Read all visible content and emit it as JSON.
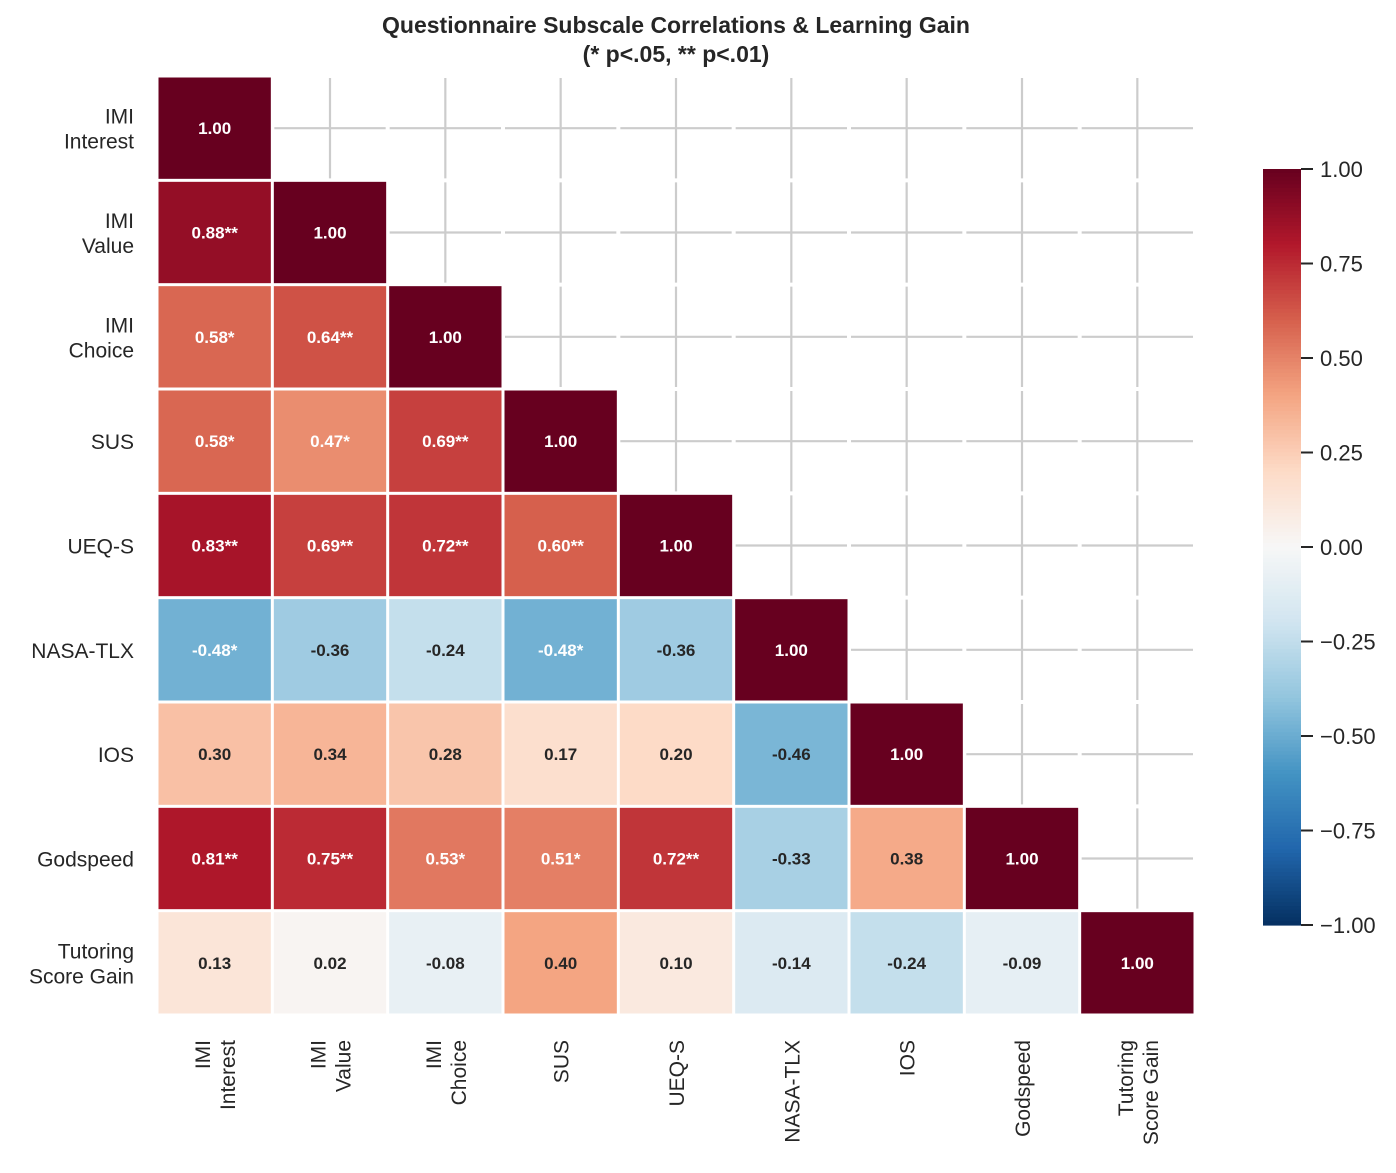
{
  "chart_data": {
    "type": "heatmap",
    "title": "Questionnaire Subscale Correlations & Learning Gain",
    "subtitle": "(* p<.05, ** p<.01)",
    "row_labels": [
      [
        "IMI",
        "Interest"
      ],
      [
        "IMI",
        "Value"
      ],
      [
        "IMI",
        "Choice"
      ],
      [
        "SUS"
      ],
      [
        "UEQ-S"
      ],
      [
        "NASA-TLX"
      ],
      [
        "IOS"
      ],
      [
        "Godspeed"
      ],
      [
        "Tutoring",
        "Score Gain"
      ]
    ],
    "col_labels": [
      [
        "IMI",
        "Interest"
      ],
      [
        "IMI",
        "Value"
      ],
      [
        "IMI",
        "Choice"
      ],
      [
        "SUS"
      ],
      [
        "UEQ-S"
      ],
      [
        "NASA-TLX"
      ],
      [
        "IOS"
      ],
      [
        "Godspeed"
      ],
      [
        "Tutoring",
        "Score Gain"
      ]
    ],
    "mask": "upper-triangle",
    "values": [
      [
        1.0
      ],
      [
        0.88,
        1.0
      ],
      [
        0.58,
        0.64,
        1.0
      ],
      [
        0.58,
        0.47,
        0.69,
        1.0
      ],
      [
        0.83,
        0.69,
        0.72,
        0.6,
        1.0
      ],
      [
        -0.48,
        -0.36,
        -0.24,
        -0.48,
        -0.36,
        1.0
      ],
      [
        0.3,
        0.34,
        0.28,
        0.17,
        0.2,
        -0.46,
        1.0
      ],
      [
        0.81,
        0.75,
        0.53,
        0.51,
        0.72,
        -0.33,
        0.38,
        1.0
      ],
      [
        0.13,
        0.02,
        -0.08,
        0.4,
        0.1,
        -0.14,
        -0.24,
        -0.09,
        1.0
      ]
    ],
    "annotations": [
      [
        "1.00"
      ],
      [
        "0.88**",
        "1.00"
      ],
      [
        "0.58*",
        "0.64**",
        "1.00"
      ],
      [
        "0.58*",
        "0.47*",
        "0.69**",
        "1.00"
      ],
      [
        "0.83**",
        "0.69**",
        "0.72**",
        "0.60**",
        "1.00"
      ],
      [
        "-0.48*",
        "-0.36",
        "-0.24",
        "-0.48*",
        "-0.36",
        "1.00"
      ],
      [
        "0.30",
        "0.34",
        "0.28",
        "0.17",
        "0.20",
        "-0.46",
        "1.00"
      ],
      [
        "0.81**",
        "0.75**",
        "0.53*",
        "0.51*",
        "0.72**",
        "-0.33",
        "0.38",
        "1.00"
      ],
      [
        "0.13",
        "0.02",
        "-0.08",
        "0.40",
        "0.10",
        "-0.14",
        "-0.24",
        "-0.09",
        "1.00"
      ]
    ],
    "colormap": "RdBu_r",
    "colormap_stops": [
      "#053061",
      "#2166ac",
      "#4393c3",
      "#92c5de",
      "#d1e5f0",
      "#f7f7f7",
      "#fddbc7",
      "#f4a582",
      "#d6604d",
      "#b2182b",
      "#67001f"
    ],
    "vmin": -1,
    "vmax": 1,
    "colorbar_ticks": [
      "1.00",
      "0.75",
      "0.50",
      "0.25",
      "0.00",
      "−0.25",
      "−0.50",
      "−0.75",
      "−1.00"
    ],
    "colorbar_tick_values": [
      1,
      0.75,
      0.5,
      0.25,
      0,
      -0.25,
      -0.5,
      -0.75,
      -1
    ],
    "grid": true
  }
}
